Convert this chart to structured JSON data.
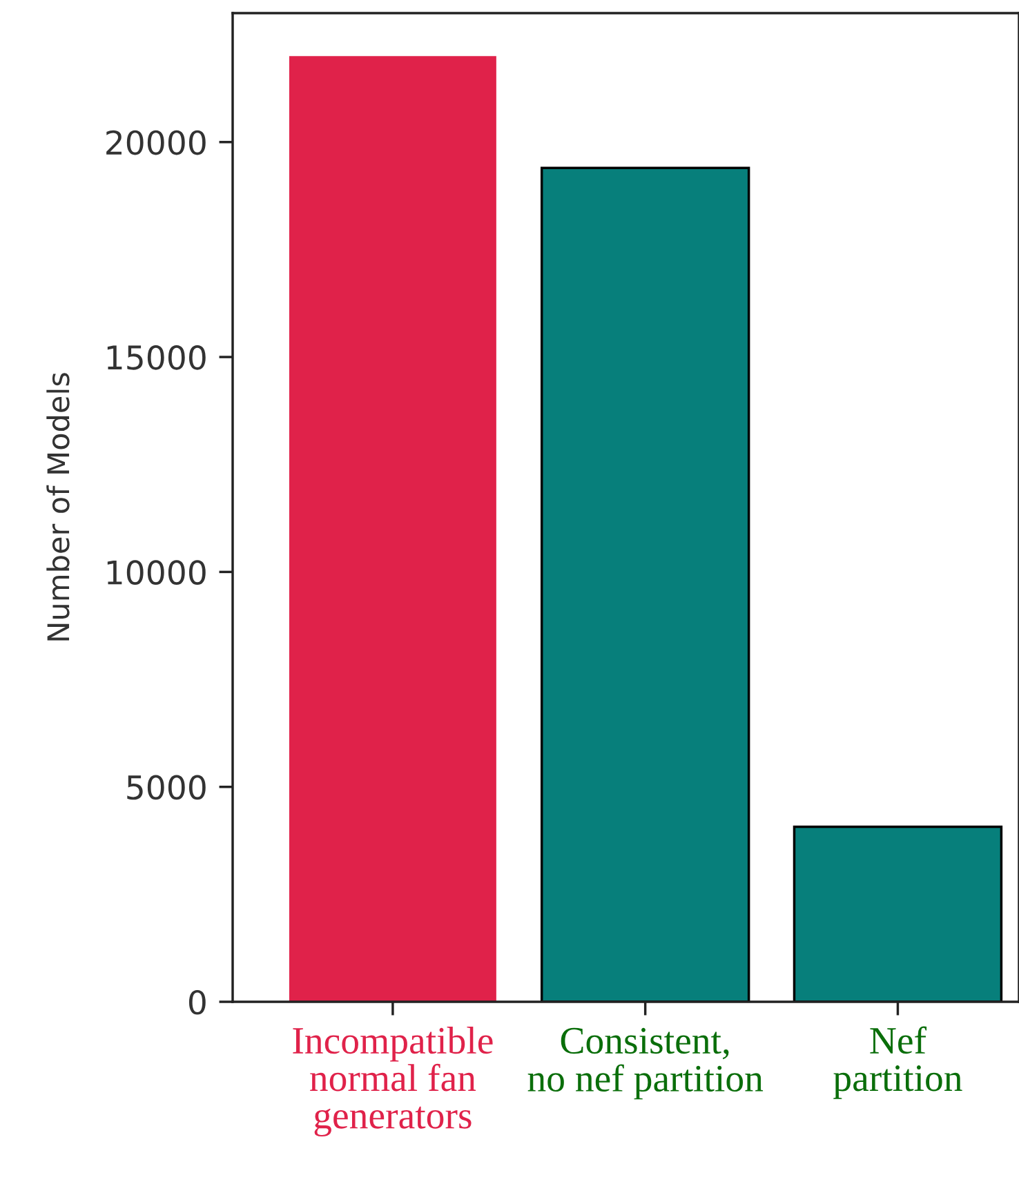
{
  "chart_data": {
    "type": "bar",
    "ylabel": "Number of Models",
    "categories": [
      "Incompatible\nnormal fan\ngenerators",
      "Consistent,\nno nef partition",
      "Nef\npartition"
    ],
    "values": [
      22000,
      19400,
      4070
    ],
    "colors": [
      "#e0224a",
      "#077f7b",
      "#077f7b"
    ],
    "ylim": [
      0,
      23000
    ],
    "yticks": [
      0,
      5000,
      10000,
      15000,
      20000
    ],
    "grid": false,
    "legend": false
  }
}
